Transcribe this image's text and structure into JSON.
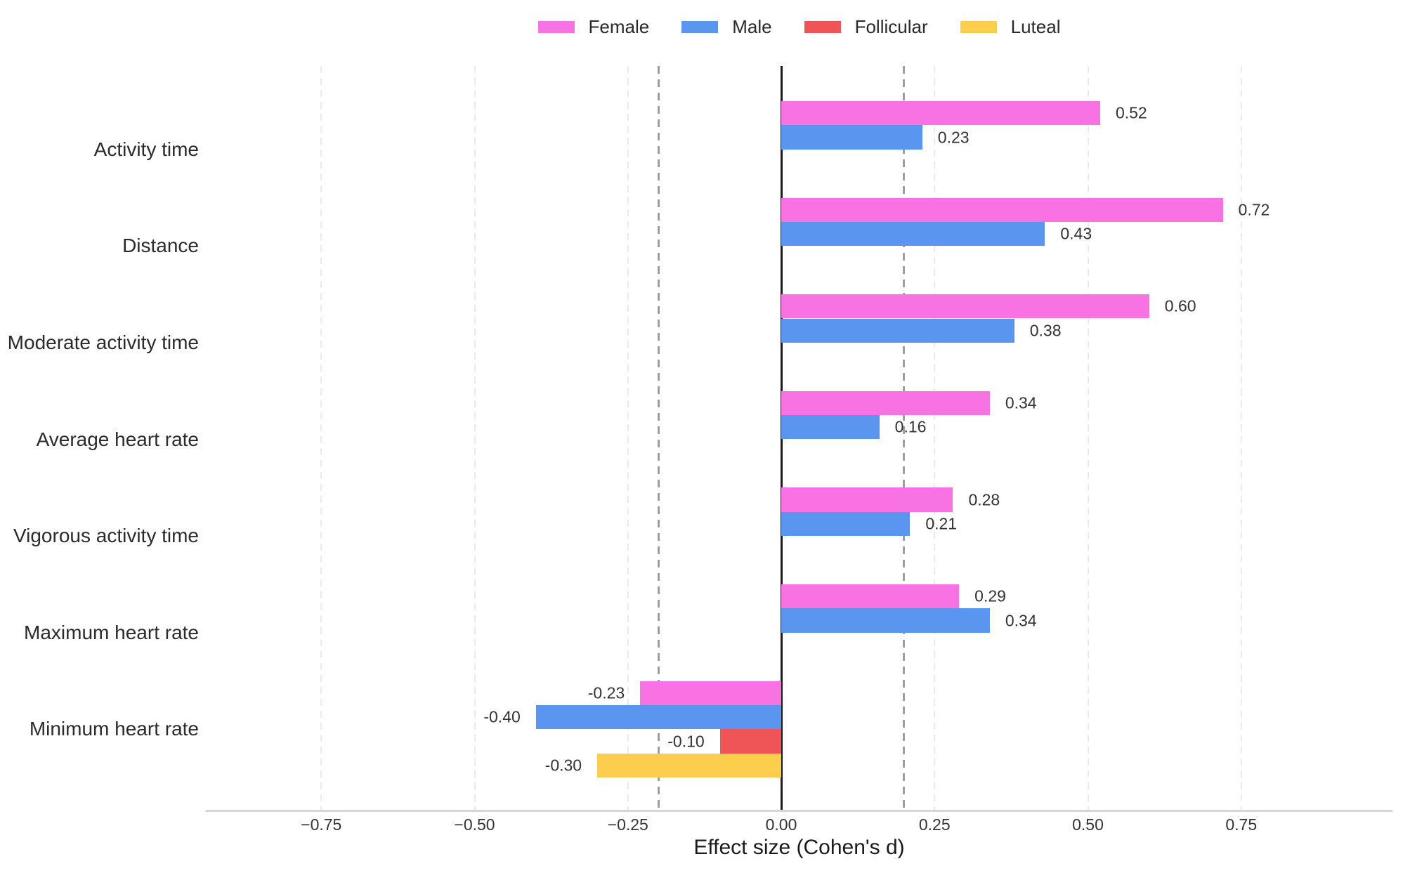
{
  "chart_data": {
    "type": "bar",
    "orientation": "horizontal",
    "title": "",
    "xlabel": "Effect size (Cohen's d)",
    "ylabel": "",
    "categories": [
      "Activity time",
      "Distance",
      "Moderate activity time",
      "Average heart rate",
      "Vigorous activity time",
      "Maximum heart rate",
      "Minimum heart rate"
    ],
    "series": [
      {
        "name": "Female",
        "color": "#F972E3",
        "values": [
          0.52,
          0.72,
          0.6,
          0.34,
          0.28,
          0.29,
          -0.23
        ]
      },
      {
        "name": "Male",
        "color": "#5A95F0",
        "values": [
          0.23,
          0.43,
          0.38,
          0.16,
          0.21,
          0.34,
          -0.4
        ]
      },
      {
        "name": "Follicular",
        "color": "#EF5456",
        "values": [
          null,
          null,
          null,
          null,
          null,
          null,
          -0.1
        ]
      },
      {
        "name": "Luteal",
        "color": "#FDCE4E",
        "values": [
          null,
          null,
          null,
          null,
          null,
          null,
          -0.3
        ]
      }
    ],
    "value_labels": true,
    "value_label_decimals": 2,
    "x_ticks": [
      -0.75,
      -0.5,
      -0.25,
      0,
      0.25,
      0.5,
      0.75
    ],
    "x_tick_labels": [
      "−0.75",
      "−0.50",
      "−0.25",
      "0.00",
      "0.25",
      "0.50",
      "0.75"
    ],
    "xlim": [
      -0.94,
      1.0
    ],
    "grid": "vertical-dashed",
    "reference_lines": [
      {
        "x": -0.2,
        "style": "dashed",
        "color": "#9e9e9e"
      },
      {
        "x": 0.2,
        "style": "dashed",
        "color": "#9e9e9e"
      },
      {
        "x": 0,
        "style": "solid",
        "color": "#1c1c1c"
      }
    ],
    "legend_position": "top-center"
  },
  "legend": {
    "items": [
      {
        "label": "Female",
        "color": "#F972E3"
      },
      {
        "label": "Male",
        "color": "#5A95F0"
      },
      {
        "label": "Follicular",
        "color": "#EF5456"
      },
      {
        "label": "Luteal",
        "color": "#FDCE4E"
      }
    ]
  },
  "colors": {
    "background": "#ffffff",
    "gridline": "#eaeaea",
    "reference_dashed": "#9e9e9e",
    "zero_line": "#1c1c1c",
    "axis_line": "#d6d6d6",
    "tick_text": "#333333",
    "category_text": "#2b2b2b",
    "value_text": "#333333"
  }
}
